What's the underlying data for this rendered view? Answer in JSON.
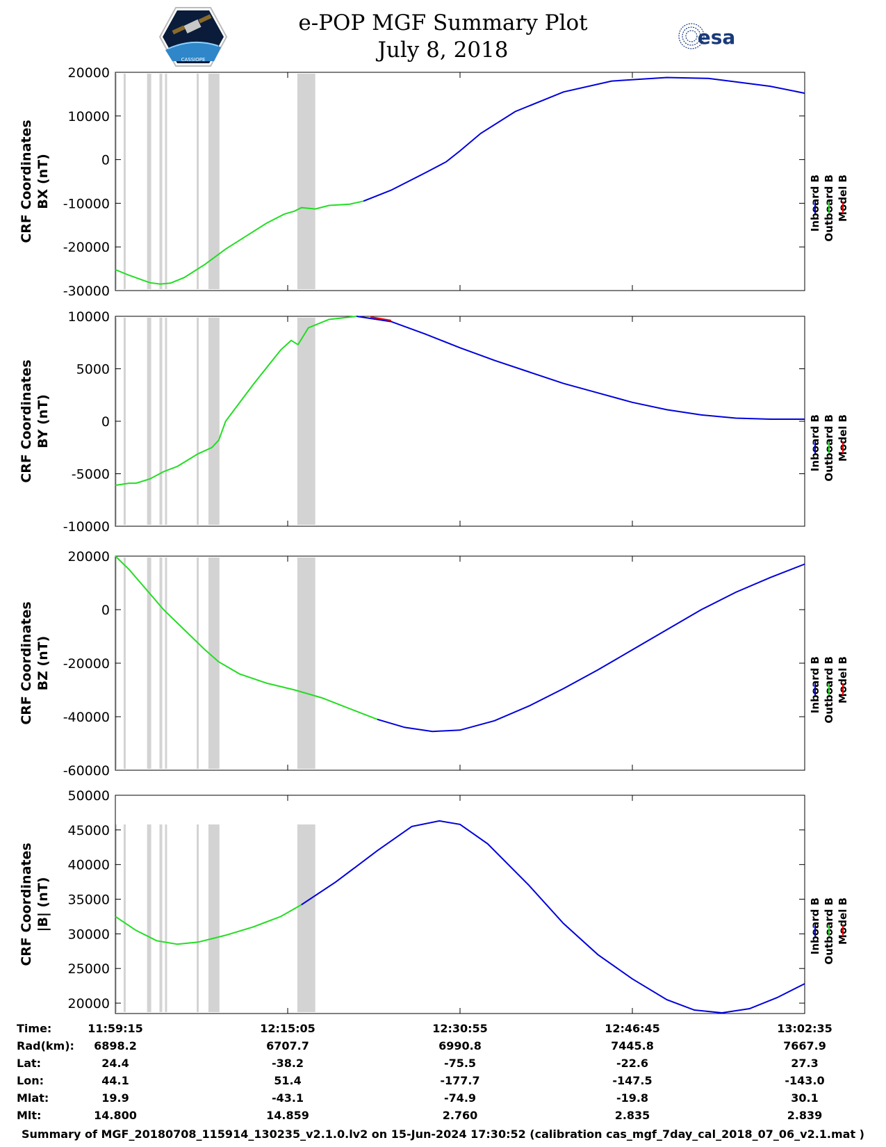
{
  "header": {
    "title_line1": "e-POP MGF Summary Plot",
    "title_line2": "July 8, 2018",
    "logo_left": "cassiope-mission-logo",
    "logo_left_text": "CASSIOPE",
    "logo_right_text": "esa"
  },
  "colors": {
    "inboard": "#0000dd",
    "outboard": "#22dd22",
    "model": "#ee0000",
    "gap_band": "#d3d3d3"
  },
  "legend": [
    "Inboard B",
    "Outboard B",
    "Model B"
  ],
  "chart_data": [
    {
      "type": "line",
      "panel": "BX",
      "ylabel_line1": "CRF Coordinates",
      "ylabel_line2": "BX (nT)",
      "ylim": [
        -30000,
        20000
      ],
      "yticks": [
        20000,
        10000,
        0,
        -10000,
        -20000,
        -30000
      ],
      "series": [
        {
          "name": "Outboard B",
          "color_key": "outboard",
          "x": [
            0,
            0.02,
            0.05,
            0.065,
            0.08,
            0.1,
            0.13,
            0.16,
            0.2,
            0.22,
            0.245,
            0.26,
            0.27,
            0.29,
            0.31,
            0.34,
            0.36
          ],
          "y": [
            -25200,
            -26500,
            -28200,
            -28500,
            -28300,
            -27000,
            -24000,
            -20500,
            -16500,
            -14500,
            -12500,
            -11800,
            -11000,
            -11300,
            -10500,
            -10200,
            -9500
          ]
        },
        {
          "name": "Inboard B",
          "color_key": "inboard",
          "x": [
            0.36,
            0.4,
            0.45,
            0.48,
            0.5,
            0.53,
            0.58,
            0.65,
            0.72,
            0.8,
            0.86,
            0.9,
            0.95,
            1.0
          ],
          "y": [
            -9500,
            -7000,
            -3000,
            -500,
            2000,
            6000,
            11000,
            15500,
            18000,
            18800,
            18600,
            17800,
            16800,
            15200
          ]
        }
      ]
    },
    {
      "type": "line",
      "panel": "BY",
      "ylabel_line1": "CRF Coordinates",
      "ylabel_line2": "BY (nT)",
      "ylim": [
        -10000,
        10000
      ],
      "yticks": [
        10000,
        5000,
        0,
        -5000,
        -10000
      ],
      "series": [
        {
          "name": "Outboard B",
          "color_key": "outboard",
          "x": [
            0,
            0.02,
            0.03,
            0.05,
            0.07,
            0.09,
            0.1,
            0.12,
            0.14,
            0.15,
            0.16,
            0.2,
            0.24,
            0.255,
            0.265,
            0.28,
            0.31,
            0.35
          ],
          "y": [
            -6100,
            -5900,
            -5900,
            -5500,
            -4800,
            -4300,
            -3900,
            -3100,
            -2500,
            -1800,
            0,
            3500,
            6800,
            7700,
            7300,
            8900,
            9700,
            10000
          ]
        },
        {
          "name": "Inboard B",
          "color_key": "inboard",
          "x": [
            0.35,
            0.4,
            0.45,
            0.5,
            0.55,
            0.6,
            0.65,
            0.7,
            0.75,
            0.8,
            0.85,
            0.9,
            0.95,
            1.0
          ],
          "y": [
            10000,
            9500,
            8300,
            7000,
            5800,
            4700,
            3600,
            2700,
            1800,
            1100,
            600,
            300,
            200,
            200
          ]
        },
        {
          "name": "Model B",
          "color_key": "model",
          "x": [
            0.37,
            0.4
          ],
          "y": [
            9950,
            9600
          ]
        }
      ]
    },
    {
      "type": "line",
      "panel": "BZ",
      "ylabel_line1": "CRF Coordinates",
      "ylabel_line2": "BZ (nT)",
      "ylim": [
        -60000,
        20000
      ],
      "yticks": [
        20000,
        0,
        -20000,
        -40000,
        -60000
      ],
      "series": [
        {
          "name": "Outboard B",
          "color_key": "outboard",
          "x": [
            0,
            0.02,
            0.05,
            0.07,
            0.1,
            0.13,
            0.15,
            0.18,
            0.22,
            0.26,
            0.3,
            0.34,
            0.38
          ],
          "y": [
            20000,
            15000,
            6000,
            0,
            -7500,
            -15000,
            -19500,
            -24000,
            -27500,
            -30000,
            -33000,
            -37000,
            -41000
          ]
        },
        {
          "name": "Inboard B",
          "color_key": "inboard",
          "x": [
            0.38,
            0.42,
            0.46,
            0.5,
            0.55,
            0.6,
            0.65,
            0.7,
            0.75,
            0.8,
            0.85,
            0.9,
            0.95,
            1.0
          ],
          "y": [
            -41000,
            -44000,
            -45500,
            -45000,
            -41500,
            -36000,
            -29500,
            -22500,
            -15000,
            -7500,
            0,
            6500,
            12000,
            17000
          ]
        }
      ]
    },
    {
      "type": "line",
      "panel": "|B|",
      "ylabel_line1": "CRF Coordinates",
      "ylabel_line2": "|B| (nT)",
      "ylim": [
        18500,
        50000
      ],
      "yticks": [
        50000,
        45000,
        40000,
        35000,
        30000,
        25000,
        20000
      ],
      "series": [
        {
          "name": "Outboard B",
          "color_key": "outboard",
          "x": [
            0,
            0.03,
            0.06,
            0.09,
            0.12,
            0.16,
            0.2,
            0.24,
            0.27
          ],
          "y": [
            32500,
            30500,
            29000,
            28500,
            28800,
            29800,
            31000,
            32500,
            34200
          ]
        },
        {
          "name": "Inboard B",
          "color_key": "inboard",
          "x": [
            0.27,
            0.32,
            0.38,
            0.43,
            0.47,
            0.5,
            0.54,
            0.6,
            0.65,
            0.7,
            0.75,
            0.8,
            0.84,
            0.88,
            0.92,
            0.96,
            1.0
          ],
          "y": [
            34200,
            37500,
            42000,
            45500,
            46300,
            45800,
            43000,
            37000,
            31500,
            27000,
            23500,
            20500,
            19000,
            18600,
            19200,
            20800,
            22800
          ]
        }
      ]
    }
  ],
  "gap_bands": [
    [
      0.0,
      0.002
    ],
    [
      0.012,
      0.015
    ],
    [
      0.046,
      0.052
    ],
    [
      0.064,
      0.068
    ],
    [
      0.072,
      0.075
    ],
    [
      0.118,
      0.121
    ],
    [
      0.135,
      0.151
    ],
    [
      0.264,
      0.29
    ]
  ],
  "xaxis": {
    "ticks": [
      0.0,
      0.25,
      0.5,
      0.75,
      1.0
    ]
  },
  "footer": {
    "labels": [
      "Time:",
      "Rad(km):",
      "Lat:",
      "Lon:",
      "Mlat:",
      "Mlt:"
    ],
    "columns": [
      {
        "time": "11:59:15",
        "rad": "6898.2",
        "lat": "24.4",
        "lon": "44.1",
        "mlat": "19.9",
        "mlt": "14.800"
      },
      {
        "time": "12:15:05",
        "rad": "6707.7",
        "lat": "-38.2",
        "lon": "51.4",
        "mlat": "-43.1",
        "mlt": "14.859"
      },
      {
        "time": "12:30:55",
        "rad": "6990.8",
        "lat": "-75.5",
        "lon": "-177.7",
        "mlat": "-74.9",
        "mlt": "2.760"
      },
      {
        "time": "12:46:45",
        "rad": "7445.8",
        "lat": "-22.6",
        "lon": "-147.5",
        "mlat": "-19.8",
        "mlt": "2.835"
      },
      {
        "time": "13:02:35",
        "rad": "7667.9",
        "lat": "27.3",
        "lon": "-143.0",
        "mlat": "30.1",
        "mlt": "2.839"
      }
    ],
    "summary": "Summary of MGF_20180708_115914_130235_v2.1.0.lv2 on 15-Jun-2024 17:30:52 (calibration cas_mgf_7day_cal_2018_07_06_v2.1.mat )"
  }
}
